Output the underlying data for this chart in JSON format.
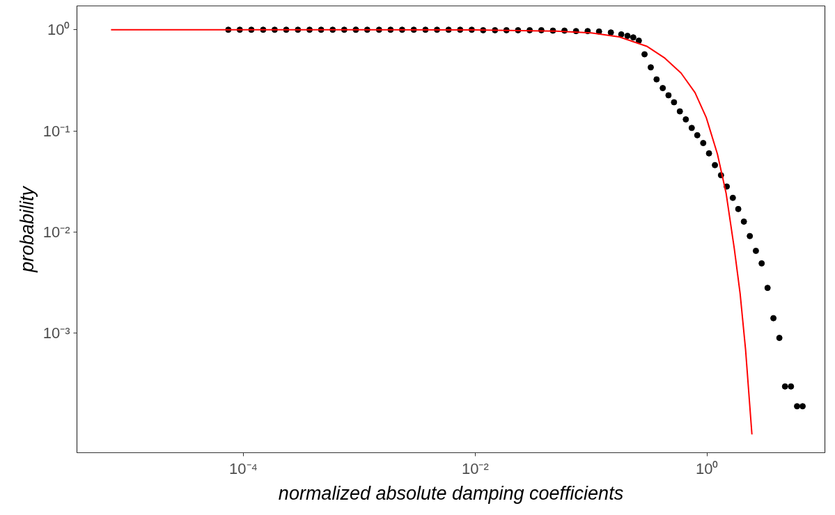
{
  "chart_data": {
    "type": "scatter",
    "xlabel": "normalized absolute damping coefficients",
    "ylabel": "probability",
    "log": "xy",
    "grid": false,
    "xlim": [
      3.66e-06,
      10.4
    ],
    "ylim": [
      6.6e-05,
      1.72
    ],
    "xticks": [
      {
        "value": 0.0001,
        "label": "10⁻⁴"
      },
      {
        "value": 0.01,
        "label": "10⁻²"
      },
      {
        "value": 1,
        "label": "10⁰"
      }
    ],
    "yticks": [
      {
        "value": 0.001,
        "label": "10⁻³"
      },
      {
        "value": 0.01,
        "label": "10⁻²"
      },
      {
        "value": 0.1,
        "label": "10⁻¹"
      },
      {
        "value": 1,
        "label": "10⁰"
      }
    ],
    "series": [
      {
        "color": "#000000",
        "marker": "circle",
        "x": [
          7.4e-05,
          9.3e-05,
          0.000117,
          0.000148,
          0.000186,
          0.000234,
          0.000295,
          0.000372,
          0.000468,
          0.000589,
          0.000741,
          0.000933,
          0.00117,
          0.00148,
          0.00186,
          0.00234,
          0.00295,
          0.00372,
          0.00468,
          0.00589,
          0.00741,
          0.00933,
          0.0117,
          0.0148,
          0.0186,
          0.0234,
          0.0295,
          0.0372,
          0.0468,
          0.0589,
          0.0741,
          0.0933,
          0.117,
          0.148,
          0.182,
          0.206,
          0.231,
          0.258,
          0.289,
          0.327,
          0.367,
          0.415,
          0.465,
          0.519,
          0.583,
          0.656,
          0.738,
          0.824,
          0.927,
          1.04,
          1.17,
          1.32,
          1.48,
          1.67,
          1.86,
          2.08,
          2.34,
          2.64,
          2.96,
          3.33,
          3.74,
          4.21,
          4.71,
          5.3,
          5.98,
          6.68
        ],
        "values": [
          1,
          1,
          1,
          1,
          1,
          1,
          1,
          1,
          1,
          1,
          1,
          1,
          1,
          1,
          1,
          1,
          1,
          1,
          1,
          1,
          1,
          1,
          0.99,
          0.99,
          0.99,
          0.99,
          0.99,
          0.99,
          0.98,
          0.98,
          0.97,
          0.97,
          0.96,
          0.94,
          0.9,
          0.87,
          0.84,
          0.78,
          0.572,
          0.425,
          0.323,
          0.265,
          0.225,
          0.192,
          0.156,
          0.13,
          0.107,
          0.0906,
          0.0759,
          0.06,
          0.0459,
          0.0365,
          0.0282,
          0.0218,
          0.0169,
          0.0127,
          0.00914,
          0.00653,
          0.00491,
          0.00281,
          0.00141,
          0.0009,
          0.000298,
          0.000298,
          0.00019,
          0.00019
        ]
      },
      {
        "type": "line",
        "color": "#ff0000",
        "x": [
          7.2e-06,
          0.0001,
          0.001,
          0.01,
          0.05,
          0.1,
          0.175,
          0.305,
          0.427,
          0.597,
          0.788,
          0.986,
          1.23,
          1.46,
          1.72,
          1.93,
          2.15,
          2.44
        ],
        "values": [
          1,
          1,
          1,
          0.995,
          0.97,
          0.93,
          0.85,
          0.683,
          0.53,
          0.373,
          0.239,
          0.135,
          0.059,
          0.0243,
          0.00683,
          0.00247,
          0.000693,
          0.0001
        ]
      }
    ]
  }
}
